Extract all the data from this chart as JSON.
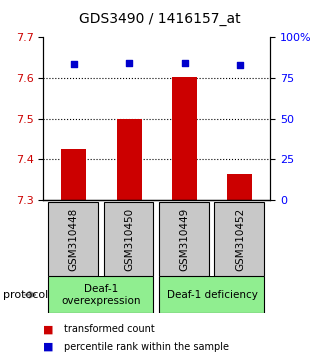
{
  "title": "GDS3490 / 1416157_at",
  "samples": [
    "GSM310448",
    "GSM310450",
    "GSM310449",
    "GSM310452"
  ],
  "bar_values": [
    7.425,
    7.5,
    7.602,
    7.365
  ],
  "percentile_values": [
    83.5,
    84.0,
    84.0,
    83.0
  ],
  "ylim_left": [
    7.3,
    7.7
  ],
  "ylim_right": [
    0,
    100
  ],
  "yticks_left": [
    7.3,
    7.4,
    7.5,
    7.6,
    7.7
  ],
  "yticks_right": [
    0,
    25,
    50,
    75,
    100
  ],
  "ytick_labels_right": [
    "0",
    "25",
    "50",
    "75",
    "100%"
  ],
  "dotted_lines": [
    7.4,
    7.5,
    7.6
  ],
  "bar_color": "#cc0000",
  "scatter_color": "#0000cc",
  "group_box_color": "#90ee90",
  "sample_box_color": "#c8c8c8",
  "protocol_label": "protocol",
  "legend_bar_label": "transformed count",
  "legend_scatter_label": "percentile rank within the sample",
  "bar_width": 0.45,
  "title_fontsize": 10,
  "tick_fontsize": 8,
  "label_fontsize": 7.5
}
